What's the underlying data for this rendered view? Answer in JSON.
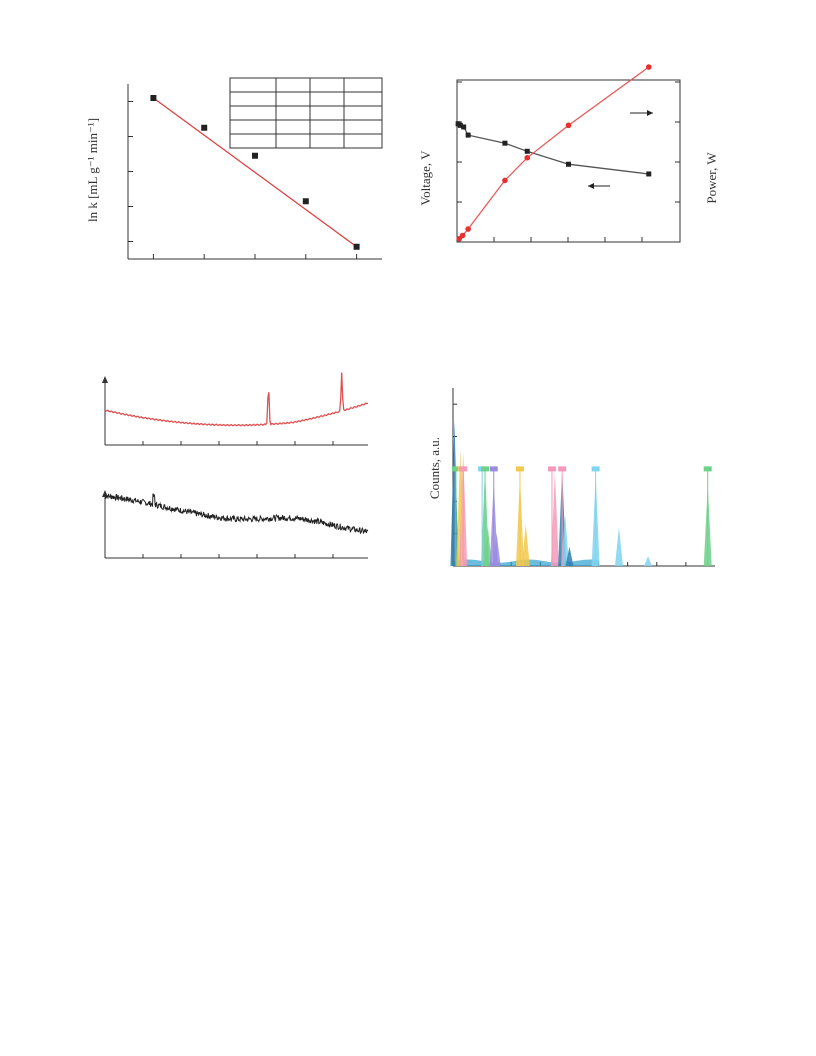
{
  "page": {
    "background": "#ffffff"
  },
  "chart_data": [
    {
      "id": "arrhenius",
      "type": "scatter",
      "ylabel": "ln k [mL g⁻¹ min⁻¹]",
      "xlabel": "",
      "fit_line": true,
      "colors": {
        "points": "#222222",
        "fit": "#e03a3a"
      },
      "points": [
        {
          "x": 1,
          "y": 4.6
        },
        {
          "x": 2,
          "y": 3.75
        },
        {
          "x": 3,
          "y": 2.95
        },
        {
          "x": 4,
          "y": 1.65
        },
        {
          "x": 5,
          "y": 0.35
        }
      ],
      "xlim": [
        0.5,
        5.5
      ],
      "ylim": [
        0,
        5
      ],
      "table": {
        "rows": 5,
        "cols": 4,
        "cells_visible_text": false
      }
    },
    {
      "id": "voltage-power",
      "type": "line",
      "ylabel": "Voltage, V",
      "y2label": "Power, W",
      "xlim": [
        0,
        20
      ],
      "ylim": [
        0,
        1
      ],
      "y2lim": [
        0,
        1
      ],
      "series": [
        {
          "axis": "left",
          "color": "#555555",
          "marker": "square",
          "x": [
            0.1,
            0.3,
            0.6,
            1.0,
            4.3,
            6.3,
            10.0,
            17.2
          ],
          "y": [
            0.73,
            0.72,
            0.71,
            0.66,
            0.61,
            0.56,
            0.48,
            0.42
          ]
        },
        {
          "axis": "right",
          "color": "#e85a5a",
          "marker": "circle",
          "x": [
            0.2,
            0.5,
            1.0,
            4.3,
            6.3,
            10.0,
            17.2
          ],
          "y": [
            0.02,
            0.04,
            0.08,
            0.38,
            0.52,
            0.72,
            1.08
          ]
        }
      ],
      "annotations": [
        {
          "type": "arrow",
          "direction": "left"
        },
        {
          "type": "arrow",
          "direction": "right"
        }
      ]
    },
    {
      "id": "spectrum-red",
      "type": "line",
      "color": "#e05050",
      "xlim": [
        0,
        7
      ],
      "ylim": [
        0,
        1
      ],
      "peaks_at_x": [
        4.35,
        6.3
      ]
    },
    {
      "id": "spectrum-black",
      "type": "line",
      "color": "#222222",
      "xlim": [
        0,
        7
      ],
      "ylim": [
        0,
        1
      ]
    },
    {
      "id": "counts",
      "type": "bar",
      "ylabel": "Counts, a.u.",
      "xlim": [
        0,
        9
      ],
      "ylim": [
        0,
        5.5
      ],
      "colors": [
        "#f2c94c",
        "#f49ab8",
        "#6fd08a",
        "#9b8be0",
        "#7fd4f0",
        "#2e7fb0"
      ],
      "markers": [
        {
          "x": 0.1,
          "color": "#6fd08a"
        },
        {
          "x": 0.3,
          "color": "#f2c94c"
        },
        {
          "x": 0.35,
          "color": "#f49ab8"
        },
        {
          "x": 1.0,
          "color": "#7fd4f0"
        },
        {
          "x": 1.1,
          "color": "#6fd08a"
        },
        {
          "x": 1.4,
          "color": "#9b8be0"
        },
        {
          "x": 2.3,
          "color": "#f2c94c"
        },
        {
          "x": 3.4,
          "color": "#f49ab8"
        },
        {
          "x": 3.75,
          "color": "#f49ab8"
        },
        {
          "x": 4.9,
          "color": "#7fd4f0"
        },
        {
          "x": 8.75,
          "color": "#6fd08a"
        }
      ],
      "peaks": [
        {
          "x": 0.05,
          "h": 4.5,
          "color": "#2e7fb0"
        },
        {
          "x": 0.25,
          "h": 3.6,
          "color": "#f2c94c"
        },
        {
          "x": 0.35,
          "h": 3.5,
          "color": "#f49ab8"
        },
        {
          "x": 1.1,
          "h": 3.0,
          "color": "#6fd08a"
        },
        {
          "x": 1.2,
          "h": 1.2,
          "color": "#6fd08a"
        },
        {
          "x": 1.4,
          "h": 2.6,
          "color": "#9b8be0"
        },
        {
          "x": 1.5,
          "h": 1.0,
          "color": "#9b8be0"
        },
        {
          "x": 2.3,
          "h": 2.8,
          "color": "#f2c94c"
        },
        {
          "x": 2.5,
          "h": 1.3,
          "color": "#f2c94c"
        },
        {
          "x": 3.5,
          "h": 2.9,
          "color": "#f49ab8"
        },
        {
          "x": 3.75,
          "h": 3.0,
          "color": "#2e7fb0"
        },
        {
          "x": 3.85,
          "h": 1.6,
          "color": "#7fd4f0"
        },
        {
          "x": 4.0,
          "h": 0.6,
          "color": "#2e7fb0"
        },
        {
          "x": 4.9,
          "h": 2.8,
          "color": "#7fd4f0"
        },
        {
          "x": 5.7,
          "h": 1.2,
          "color": "#7fd4f0"
        },
        {
          "x": 6.7,
          "h": 0.3,
          "color": "#7fd4f0"
        },
        {
          "x": 8.75,
          "h": 2.5,
          "color": "#6fd08a"
        }
      ]
    }
  ]
}
